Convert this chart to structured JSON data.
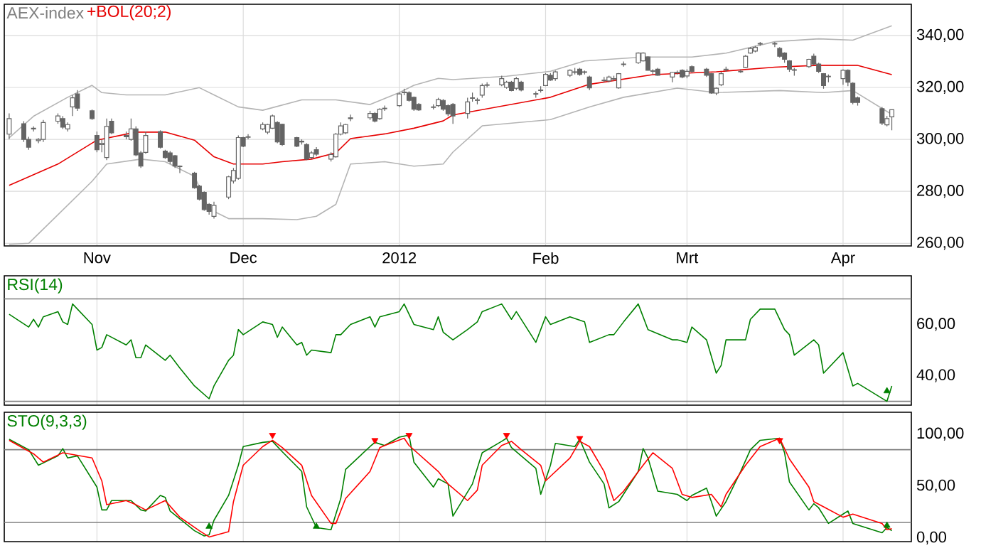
{
  "chart_data": [
    {
      "type": "candlestick",
      "title": "AEX-index",
      "legend": "top left",
      "grid": true,
      "xlim": [
        "2011-10-13",
        "2012-04-16"
      ],
      "ylim": [
        259,
        352
      ],
      "xticks": [
        {
          "value": "2011-11-01",
          "label": "Nov"
        },
        {
          "value": "2011-12-01",
          "label": "Dec"
        },
        {
          "value": "2012-01-02",
          "label": "2012"
        },
        {
          "value": "2012-02-01",
          "label": "Feb"
        },
        {
          "value": "2012-03-01",
          "label": "Mrt"
        },
        {
          "value": "2012-04-02",
          "label": "Apr"
        }
      ],
      "yticks": [
        {
          "value": 260,
          "label": "260,00"
        },
        {
          "value": 280,
          "label": "280,00"
        },
        {
          "value": 300,
          "label": "300,00"
        },
        {
          "value": 320,
          "label": "320,00"
        },
        {
          "value": 340,
          "label": "340,00"
        }
      ],
      "series": [
        {
          "type": "line",
          "color": "#b4b4b4",
          "x": [
            "2011-10-14",
            "2011-10-19",
            "2011-10-26",
            "2011-10-31",
            "2011-11-02",
            "2011-11-07",
            "2011-11-15",
            "2011-11-22",
            "2011-11-25",
            "2011-11-30",
            "2011-12-05",
            "2011-12-13",
            "2011-12-20",
            "2011-12-27",
            "2012-01-02",
            "2012-01-05",
            "2012-01-10",
            "2012-01-13",
            "2012-01-24",
            "2012-02-02",
            "2012-02-09",
            "2012-02-21",
            "2012-03-02",
            "2012-03-09",
            "2012-03-19",
            "2012-03-28",
            "2012-04-04",
            "2012-04-12"
          ],
          "values": [
            300.6,
            308.9,
            316.2,
            320.8,
            318,
            317.1,
            317.1,
            319.9,
            317.1,
            312.5,
            311.2,
            315.2,
            315.2,
            313.4,
            318,
            320.8,
            323.5,
            323,
            324.3,
            326.2,
            330.2,
            331.7,
            331.7,
            333.2,
            337.6,
            338.7,
            338.2,
            343.7
          ]
        },
        {
          "type": "line",
          "color": "#b4b4b4",
          "x": [
            "2011-10-14",
            "2011-10-18",
            "2011-10-24",
            "2011-10-31",
            "2011-11-03",
            "2011-11-10",
            "2011-11-15",
            "2011-11-21",
            "2011-11-24",
            "2011-11-28",
            "2011-12-05",
            "2011-12-12",
            "2011-12-16",
            "2011-12-20",
            "2011-12-23",
            "2011-12-30",
            "2012-01-05",
            "2012-01-11",
            "2012-01-13",
            "2012-01-19",
            "2012-02-02",
            "2012-02-10",
            "2012-02-17",
            "2012-02-28",
            "2012-03-07",
            "2012-03-20",
            "2012-03-29",
            "2012-04-04",
            "2012-04-12"
          ],
          "values": [
            259.6,
            260,
            271,
            283.9,
            290.5,
            292.4,
            291.4,
            285.8,
            273.2,
            269.5,
            269.5,
            269.1,
            270.4,
            275,
            290.5,
            291.4,
            289.7,
            290.5,
            295.1,
            305.2,
            307.6,
            312.5,
            316.2,
            319.7,
            318,
            318.8,
            318,
            318.8,
            309.6
          ]
        },
        {
          "type": "line",
          "name": "+BOL(20;2)",
          "color": "#e60000",
          "x": [
            "2011-10-14",
            "2011-10-24",
            "2011-11-01",
            "2011-11-09",
            "2011-11-15",
            "2011-11-21",
            "2011-11-25",
            "2011-11-29",
            "2011-12-05",
            "2011-12-09",
            "2011-12-15",
            "2011-12-20",
            "2011-12-23",
            "2011-12-30",
            "2012-01-05",
            "2012-01-11",
            "2012-01-13",
            "2012-02-02",
            "2012-02-10",
            "2012-02-23",
            "2012-03-07",
            "2012-03-19",
            "2012-03-28",
            "2012-04-05",
            "2012-04-12"
          ],
          "values": [
            282.3,
            290.5,
            299.7,
            302.8,
            302.8,
            299.7,
            293.3,
            290.5,
            290.5,
            291.4,
            292.4,
            294.8,
            300.3,
            302.1,
            304.3,
            307.1,
            309.4,
            316.2,
            321.2,
            324.9,
            326,
            327.8,
            328.5,
            328.5,
            324.9
          ]
        },
        {
          "type": "candlestick",
          "color": "#646464",
          "x": [
            "2011-10-14",
            "2011-10-17",
            "2011-10-18",
            "2011-10-19",
            "2011-10-20",
            "2011-10-21",
            "2011-10-24",
            "2011-10-25",
            "2011-10-26",
            "2011-10-27",
            "2011-10-28",
            "2011-10-31",
            "2011-11-01",
            "2011-11-02",
            "2011-11-03",
            "2011-11-04",
            "2011-11-07",
            "2011-11-08",
            "2011-11-09",
            "2011-11-10",
            "2011-11-11",
            "2011-11-14",
            "2011-11-15",
            "2011-11-16",
            "2011-11-17",
            "2011-11-18",
            "2011-11-21",
            "2011-11-22",
            "2011-11-23",
            "2011-11-24",
            "2011-11-25",
            "2011-11-28",
            "2011-11-29",
            "2011-11-30",
            "2011-12-01",
            "2011-12-02",
            "2011-12-05",
            "2011-12-06",
            "2011-12-07",
            "2011-12-08",
            "2011-12-09",
            "2011-12-12",
            "2011-12-13",
            "2011-12-14",
            "2011-12-15",
            "2011-12-16",
            "2011-12-19",
            "2011-12-20",
            "2011-12-21",
            "2011-12-22",
            "2011-12-23",
            "2011-12-27",
            "2011-12-28",
            "2011-12-29",
            "2011-12-30",
            "2012-01-02",
            "2012-01-03",
            "2012-01-04",
            "2012-01-05",
            "2012-01-06",
            "2012-01-09",
            "2012-01-10",
            "2012-01-11",
            "2012-01-12",
            "2012-01-13",
            "2012-01-16",
            "2012-01-17",
            "2012-01-18",
            "2012-01-19",
            "2012-01-20",
            "2012-01-23",
            "2012-01-24",
            "2012-01-25",
            "2012-01-26",
            "2012-01-27",
            "2012-01-30",
            "2012-01-31",
            "2012-02-01",
            "2012-02-02",
            "2012-02-03",
            "2012-02-06",
            "2012-02-07",
            "2012-02-08",
            "2012-02-09",
            "2012-02-10",
            "2012-02-13",
            "2012-02-14",
            "2012-02-15",
            "2012-02-16",
            "2012-02-17",
            "2012-02-20",
            "2012-02-21",
            "2012-02-22",
            "2012-02-23",
            "2012-02-24",
            "2012-02-27",
            "2012-02-28",
            "2012-02-29",
            "2012-03-01",
            "2012-03-02",
            "2012-03-05",
            "2012-03-06",
            "2012-03-07",
            "2012-03-08",
            "2012-03-09",
            "2012-03-12",
            "2012-03-13",
            "2012-03-14",
            "2012-03-15",
            "2012-03-16",
            "2012-03-19",
            "2012-03-20",
            "2012-03-21",
            "2012-03-22",
            "2012-03-23",
            "2012-03-26",
            "2012-03-27",
            "2012-03-28",
            "2012-03-29",
            "2012-03-30",
            "2012-04-02",
            "2012-04-03",
            "2012-04-04",
            "2012-04-05",
            "2012-04-10",
            "2012-04-11",
            "2012-04-12"
          ],
          "ohlc": [
            [
              302,
              310,
              300,
              308
            ],
            [
              306,
              307,
              299,
              300
            ],
            [
              300,
              301,
              296,
              297
            ],
            [
              304,
              305,
              303,
              304.3
            ],
            [
              299.5,
              300.5,
              298.5,
              300
            ],
            [
              300,
              307.5,
              299,
              306.5
            ],
            [
              307,
              310,
              306,
              309
            ],
            [
              308,
              309,
              304,
              304.7
            ],
            [
              304,
              306.5,
              303,
              305.7
            ],
            [
              312.5,
              317,
              309,
              316
            ],
            [
              317.5,
              319,
              311,
              312
            ],
            [
              311,
              311.5,
              307.5,
              308
            ],
            [
              301.5,
              303,
              295,
              296
            ],
            [
              298,
              300,
              295,
              298.5
            ],
            [
              293,
              308,
              292,
              305
            ],
            [
              307,
              308,
              302,
              302.5
            ],
            [
              301.5,
              303,
              300,
              301
            ],
            [
              300,
              308,
              299.5,
              304
            ],
            [
              304,
              305,
              293.5,
              294
            ],
            [
              294.8,
              295.5,
              289,
              289.7
            ],
            [
              295,
              303,
              294.5,
              301.5
            ],
            [
              303,
              303.5,
              296.5,
              297
            ],
            [
              295.5,
              296,
              292.5,
              293
            ],
            [
              294.8,
              295.5,
              290.5,
              291.5
            ],
            [
              293.7,
              294,
              289,
              289.7
            ],
            [
              289.5,
              290,
              287,
              289.7
            ],
            [
              287,
              287.5,
              281,
              281.4
            ],
            [
              282,
              282.5,
              276.5,
              277
            ],
            [
              279.6,
              280,
              272.5,
              273
            ],
            [
              275,
              275.5,
              271,
              272.3
            ],
            [
              270.4,
              276,
              269.5,
              274.6
            ],
            [
              277.8,
              286,
              277,
              285.6
            ],
            [
              284,
              289,
              283,
              288
            ],
            [
              285,
              301.5,
              284.5,
              300.7
            ],
            [
              300.7,
              301,
              297,
              297.4
            ],
            [
              300.8,
              302,
              300,
              301
            ],
            [
              304,
              306.5,
              303.5,
              305.7
            ],
            [
              302.8,
              306,
              302,
              305.7
            ],
            [
              304.3,
              309.5,
              304,
              309
            ],
            [
              306.5,
              307,
              298.5,
              299
            ],
            [
              305.8,
              306,
              297.5,
              298
            ],
            [
              300.7,
              301,
              297,
              297.4
            ],
            [
              299.3,
              300,
              298,
              299
            ],
            [
              298,
              298.5,
              292,
              292.4
            ],
            [
              293,
              295.5,
              292.5,
              294.8
            ],
            [
              296,
              297,
              293.5,
              294.3
            ],
            [
              292.4,
              295,
              291.5,
              294.2
            ],
            [
              293.3,
              302.5,
              293,
              302
            ],
            [
              302,
              306.5,
              301.5,
              305.2
            ],
            [
              302.5,
              306,
              302,
              305.7
            ],
            [
              308,
              309.5,
              307,
              308.3
            ],
            [
              308.3,
              311,
              307.5,
              310
            ],
            [
              310,
              310.5,
              306.5,
              307
            ],
            [
              308,
              312,
              307.5,
              311.6
            ],
            [
              311.8,
              313,
              311,
              312
            ],
            [
              313,
              318,
              312.5,
              317.5
            ],
            [
              318,
              319.5,
              317,
              318.2
            ],
            [
              318,
              318.5,
              314.5,
              315
            ],
            [
              316.2,
              316.5,
              311,
              311.6
            ],
            [
              313.5,
              314,
              311,
              311.3
            ],
            [
              312.3,
              313.5,
              311.5,
              312.5
            ],
            [
              313,
              316,
              312.5,
              315.3
            ],
            [
              315,
              315.5,
              311,
              311.6
            ],
            [
              313,
              313.5,
              309,
              309.8
            ],
            [
              313.5,
              314,
              306,
              309
            ],
            [
              310,
              316,
              308,
              314.4
            ],
            [
              315.8,
              318,
              314.5,
              316
            ],
            [
              315,
              316,
              313.5,
              315.2
            ],
            [
              317,
              321.5,
              316,
              320.7
            ],
            [
              320.8,
              322,
              320,
              321
            ],
            [
              321,
              324.5,
              320.5,
              323.4
            ],
            [
              320,
              322.5,
              319.5,
              322
            ],
            [
              322,
              322.5,
              318.5,
              318.8
            ],
            [
              319.7,
              324,
              319,
              323.4
            ],
            [
              322,
              322.5,
              318.5,
              319
            ],
            [
              317.6,
              318.5,
              316,
              317.4
            ],
            [
              318.8,
              320.5,
              318,
              319
            ],
            [
              320.7,
              325.5,
              320.5,
              325
            ],
            [
              324.7,
              325.5,
              322.5,
              322.8
            ],
            [
              323.4,
              326.5,
              322.5,
              326
            ],
            [
              324.7,
              327,
              324,
              326.6
            ],
            [
              325.8,
              327.5,
              325,
              326
            ],
            [
              327,
              327.5,
              324.5,
              325
            ],
            [
              326,
              326.5,
              325,
              325.8
            ],
            [
              324,
              324.5,
              319,
              319.8
            ],
            [
              322.6,
              324,
              322,
              322.8
            ],
            [
              322.5,
              324.5,
              322,
              324
            ],
            [
              323.2,
              324.5,
              322.5,
              323.4
            ],
            [
              319.8,
              325.5,
              319.5,
              325.3
            ],
            [
              328.8,
              330,
              328,
              329
            ],
            [
              329.5,
              333.5,
              329,
              333.2
            ],
            [
              330.2,
              333.5,
              330,
              333.2
            ],
            [
              331.7,
              332,
              326.5,
              326.6
            ],
            [
              326.4,
              327,
              325,
              326.2
            ],
            [
              327,
              327.5,
              324.5,
              324.7
            ],
            [
              324,
              326,
              322,
              325.8
            ],
            [
              325.6,
              326.5,
              325,
              325.8
            ],
            [
              326.6,
              327,
              323.5,
              324
            ],
            [
              324.4,
              327,
              323.5,
              326.2
            ],
            [
              328,
              328.5,
              325.5,
              326.2
            ],
            [
              327,
              327.5,
              324,
              324.7
            ],
            [
              325.3,
              325.5,
              317.5,
              317.8
            ],
            [
              317.8,
              320,
              317,
              319.7
            ],
            [
              321,
              326,
              320.5,
              325.3
            ],
            [
              326.8,
              328,
              326,
              327
            ],
            [
              326,
              327,
              325.5,
              326.2
            ],
            [
              327.7,
              332.5,
              327.5,
              332
            ],
            [
              333.2,
              335.5,
              333,
              335
            ],
            [
              334,
              336,
              333.5,
              335.4
            ],
            [
              336.7,
              337.5,
              336,
              336.9
            ],
            [
              336.7,
              337.5,
              335.5,
              336.9
            ],
            [
              335,
              335.5,
              331.5,
              332
            ],
            [
              333.2,
              333.5,
              329.5,
              330.8
            ],
            [
              330.2,
              330.5,
              326,
              327
            ],
            [
              326.8,
              327.5,
              324.5,
              326.6
            ],
            [
              328,
              331,
              327.5,
              330.8
            ],
            [
              332,
              333,
              328.5,
              329
            ],
            [
              329,
              329.5,
              325.5,
              326.2
            ],
            [
              325.3,
              325.5,
              319.5,
              320.7
            ],
            [
              324.1,
              325,
              322,
              324.3
            ],
            [
              323.4,
              327,
              321,
              326.6
            ],
            [
              326.6,
              327,
              320.5,
              322
            ],
            [
              321.6,
              322,
              313.5,
              314.2
            ],
            [
              316,
              316.5,
              313,
              314.2
            ],
            [
              311.8,
              312.5,
              305.5,
              306.3
            ],
            [
              305.6,
              309,
              305,
              308
            ],
            [
              308.7,
              311.5,
              303.5,
              311.4
            ]
          ]
        }
      ]
    },
    {
      "type": "line",
      "legend": "top left",
      "grid": "x",
      "tick_labels": "y",
      "xlim": [
        "2011-10-13",
        "2012-04-16"
      ],
      "ylim": [
        28.5,
        79
      ],
      "xticks": [
        {
          "value": "2011-11-01",
          "label": null
        },
        {
          "value": "2011-12-01",
          "label": null
        },
        {
          "value": "2012-01-02",
          "label": null
        },
        {
          "value": "2012-02-01",
          "label": null
        },
        {
          "value": "2012-03-01",
          "label": null
        },
        {
          "value": "2012-04-02",
          "label": null
        }
      ],
      "yticks": [
        {
          "value": 40,
          "label": "40,00"
        },
        {
          "value": 60,
          "label": "60,00"
        }
      ],
      "ref_lines": [
        {
          "axis": "y",
          "value": 70,
          "color": "#808080"
        },
        {
          "axis": "y",
          "value": 30,
          "color": "#808080"
        }
      ],
      "series": [
        {
          "name": "RSI(14)",
          "color": "#008000",
          "x": [
            "2011-10-14",
            "2011-10-18",
            "2011-10-19",
            "2011-10-20",
            "2011-10-21",
            "2011-10-24",
            "2011-10-25",
            "2011-10-26",
            "2011-10-27",
            "2011-10-31",
            "2011-11-01",
            "2011-11-02",
            "2011-11-03",
            "2011-11-07",
            "2011-11-08",
            "2011-11-09",
            "2011-11-10",
            "2011-11-11",
            "2011-11-15",
            "2011-11-16",
            "2011-11-18",
            "2011-11-21",
            "2011-11-24",
            "2011-11-25",
            "2011-11-28",
            "2011-11-29",
            "2011-11-30",
            "2011-12-01",
            "2011-12-05",
            "2011-12-07",
            "2011-12-08",
            "2011-12-09",
            "2011-12-12",
            "2011-12-13",
            "2011-12-14",
            "2011-12-15",
            "2011-12-19",
            "2011-12-20",
            "2011-12-21",
            "2011-12-23",
            "2011-12-27",
            "2011-12-28",
            "2011-12-29",
            "2012-01-02",
            "2012-01-03",
            "2012-01-05",
            "2012-01-09",
            "2012-01-10",
            "2012-01-11",
            "2012-01-13",
            "2012-01-16",
            "2012-01-18",
            "2012-01-19",
            "2012-01-23",
            "2012-01-25",
            "2012-01-26",
            "2012-01-30",
            "2012-02-01",
            "2012-02-02",
            "2012-02-06",
            "2012-02-09",
            "2012-02-10",
            "2012-02-14",
            "2012-02-15",
            "2012-02-17",
            "2012-02-20",
            "2012-02-22",
            "2012-02-27",
            "2012-02-28",
            "2012-03-01",
            "2012-03-02",
            "2012-03-05",
            "2012-03-07",
            "2012-03-08",
            "2012-03-09",
            "2012-03-13",
            "2012-03-14",
            "2012-03-16",
            "2012-03-19",
            "2012-03-21",
            "2012-03-22",
            "2012-03-23",
            "2012-03-27",
            "2012-03-28",
            "2012-03-29",
            "2012-04-02",
            "2012-04-04",
            "2012-04-05",
            "2012-04-11",
            "2012-04-12"
          ],
          "values": [
            64,
            59,
            62,
            59,
            63,
            65,
            61,
            60,
            68,
            60,
            50,
            51,
            56,
            52,
            54,
            47,
            47,
            52,
            46,
            48,
            43,
            36,
            31,
            36,
            46,
            48,
            58,
            56,
            61,
            60,
            55,
            59,
            52,
            53,
            48,
            50,
            49,
            56,
            56,
            60,
            63,
            59,
            63,
            65,
            68,
            60,
            58,
            63,
            57,
            54,
            58,
            61,
            65,
            68,
            62,
            65,
            53,
            63,
            60,
            63,
            61,
            53,
            56,
            56,
            61,
            68,
            58,
            54,
            54,
            53,
            59,
            54,
            41,
            44,
            54,
            54,
            62,
            66,
            66,
            58,
            56,
            48,
            54,
            52,
            41,
            49,
            36,
            37,
            30,
            36
          ]
        },
        {
          "type": "scatter",
          "marker": "triangle",
          "color": "#008000",
          "x": [
            "2012-04-11"
          ],
          "values": [
            34
          ]
        }
      ]
    },
    {
      "type": "line",
      "legend": "top left",
      "grid": "x",
      "tick_labels": "y",
      "xlim": [
        "2011-10-13",
        "2012-04-16"
      ],
      "ylim": [
        -3.5,
        121
      ],
      "xticks": [
        {
          "value": "2011-11-01",
          "label": null
        },
        {
          "value": "2011-12-01",
          "label": null
        },
        {
          "value": "2012-01-02",
          "label": null
        },
        {
          "value": "2012-02-01",
          "label": null
        },
        {
          "value": "2012-03-01",
          "label": null
        },
        {
          "value": "2012-04-02",
          "label": null
        }
      ],
      "yticks": [
        {
          "value": 0,
          "label": "0,00"
        },
        {
          "value": 50,
          "label": "50,00"
        },
        {
          "value": 100,
          "label": "100,00"
        }
      ],
      "ref_lines": [
        {
          "axis": "y",
          "value": 85,
          "color": "#808080"
        },
        {
          "axis": "y",
          "value": 15,
          "color": "#808080"
        }
      ],
      "series": [
        {
          "name": "STO(9,3,3)",
          "color": "#008000",
          "x": [
            "2011-10-14",
            "2011-10-18",
            "2011-10-20",
            "2011-10-24",
            "2011-10-25",
            "2011-10-26",
            "2011-10-28",
            "2011-11-01",
            "2011-11-02",
            "2011-11-03",
            "2011-11-04",
            "2011-11-08",
            "2011-11-10",
            "2011-11-11",
            "2011-11-14",
            "2011-11-15",
            "2011-11-16",
            "2011-11-21",
            "2011-11-23",
            "2011-11-24",
            "2011-11-25",
            "2011-11-28",
            "2011-11-30",
            "2011-12-01",
            "2011-12-05",
            "2011-12-07",
            "2011-12-09",
            "2011-12-13",
            "2011-12-14",
            "2011-12-16",
            "2011-12-19",
            "2011-12-21",
            "2011-12-22",
            "2011-12-27",
            "2011-12-28",
            "2011-12-30",
            "2012-01-02",
            "2012-01-04",
            "2012-01-05",
            "2012-01-09",
            "2012-01-10",
            "2012-01-12",
            "2012-01-13",
            "2012-01-17",
            "2012-01-19",
            "2012-01-23",
            "2012-01-24",
            "2012-01-25",
            "2012-01-27",
            "2012-01-30",
            "2012-01-31",
            "2012-02-02",
            "2012-02-03",
            "2012-02-07",
            "2012-02-08",
            "2012-02-10",
            "2012-02-13",
            "2012-02-14",
            "2012-02-16",
            "2012-02-20",
            "2012-02-21",
            "2012-02-22",
            "2012-02-24",
            "2012-02-28",
            "2012-03-01",
            "2012-03-02",
            "2012-03-05",
            "2012-03-06",
            "2012-03-07",
            "2012-03-09",
            "2012-03-12",
            "2012-03-14",
            "2012-03-16",
            "2012-03-20",
            "2012-03-21",
            "2012-03-22",
            "2012-03-26",
            "2012-03-27",
            "2012-03-28",
            "2012-03-30",
            "2012-04-02",
            "2012-04-03",
            "2012-04-04",
            "2012-04-10",
            "2012-04-11",
            "2012-04-12"
          ],
          "values": [
            95,
            85,
            70,
            79,
            86,
            77,
            79,
            49,
            27,
            27,
            36,
            36,
            27,
            26,
            41,
            39,
            26,
            7,
            2,
            3,
            17,
            41,
            70,
            88,
            92,
            93,
            83,
            64,
            30,
            10,
            8,
            38,
            66,
            88,
            92,
            89,
            97,
            99,
            73,
            49,
            57,
            52,
            21,
            52,
            82,
            93,
            96,
            87,
            79,
            67,
            42,
            70,
            91,
            88,
            95,
            73,
            52,
            29,
            35,
            64,
            86,
            77,
            45,
            42,
            36,
            41,
            48,
            35,
            21,
            35,
            64,
            85,
            94,
            96,
            82,
            54,
            27,
            33,
            29,
            14,
            23,
            26,
            14,
            5,
            10,
            7
          ]
        },
        {
          "color": "#ff0000",
          "x": [
            "2011-10-14",
            "2011-10-19",
            "2011-10-21",
            "2011-10-25",
            "2011-10-31",
            "2011-11-02",
            "2011-11-03",
            "2011-11-07",
            "2011-11-09",
            "2011-11-11",
            "2011-11-15",
            "2011-11-18",
            "2011-11-22",
            "2011-11-24",
            "2011-11-28",
            "2011-11-29",
            "2011-12-01",
            "2011-12-05",
            "2011-12-07",
            "2011-12-09",
            "2011-12-13",
            "2011-12-15",
            "2011-12-19",
            "2011-12-20",
            "2011-12-22",
            "2011-12-27",
            "2011-12-29",
            "2011-12-30",
            "2012-01-03",
            "2012-01-04",
            "2012-01-10",
            "2012-01-12",
            "2012-01-16",
            "2012-01-18",
            "2012-01-19",
            "2012-01-23",
            "2012-01-25",
            "2012-01-27",
            "2012-01-31",
            "2012-02-01",
            "2012-02-06",
            "2012-02-08",
            "2012-02-10",
            "2012-02-13",
            "2012-02-15",
            "2012-02-17",
            "2012-02-21",
            "2012-02-23",
            "2012-02-27",
            "2012-02-29",
            "2012-03-02",
            "2012-03-06",
            "2012-03-08",
            "2012-03-09",
            "2012-03-13",
            "2012-03-16",
            "2012-03-20",
            "2012-03-22",
            "2012-03-26",
            "2012-03-27",
            "2012-03-29",
            "2012-04-02",
            "2012-04-04",
            "2012-04-10",
            "2012-04-11",
            "2012-04-12"
          ],
          "values": [
            94,
            81,
            73,
            82,
            77,
            55,
            32,
            36,
            32,
            27,
            36,
            20,
            7,
            1,
            6,
            35,
            70,
            88,
            94,
            87,
            70,
            41,
            14,
            14,
            38,
            64,
            87,
            89,
            96,
            89,
            64,
            52,
            36,
            46,
            70,
            89,
            93,
            85,
            70,
            55,
            77,
            93,
            88,
            64,
            36,
            45,
            70,
            82,
            67,
            42,
            39,
            42,
            30,
            42,
            70,
            88,
            96,
            76,
            49,
            35,
            30,
            20,
            23,
            14,
            8,
            9
          ]
        },
        {
          "type": "scatter",
          "marker": "triangle",
          "color": "#008000",
          "x": [
            "2011-11-24",
            "2011-12-16",
            "2012-04-11"
          ],
          "values": [
            11,
            11,
            12
          ]
        },
        {
          "type": "scatter",
          "marker": "triangle",
          "color": "#ff0000",
          "x": [
            "2011-12-07",
            "2011-12-28",
            "2012-01-04",
            "2012-01-24",
            "2012-02-08",
            "2012-03-20"
          ],
          "values": [
            99,
            94,
            99,
            99,
            96,
            94
          ]
        }
      ]
    }
  ]
}
